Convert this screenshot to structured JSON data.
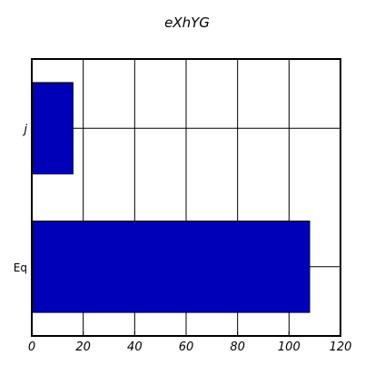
{
  "chart_data": {
    "type": "bar",
    "orientation": "horizontal",
    "title": "eXhYG",
    "xlabel": "",
    "ylabel": "",
    "categories": [
      "Eq",
      "j"
    ],
    "values": [
      108,
      16
    ],
    "xlim": [
      0,
      120
    ],
    "xticks": [
      "0",
      "20",
      "40",
      "60",
      "80",
      "100",
      "120"
    ],
    "grid": true,
    "bar_color": "#0000b8"
  }
}
